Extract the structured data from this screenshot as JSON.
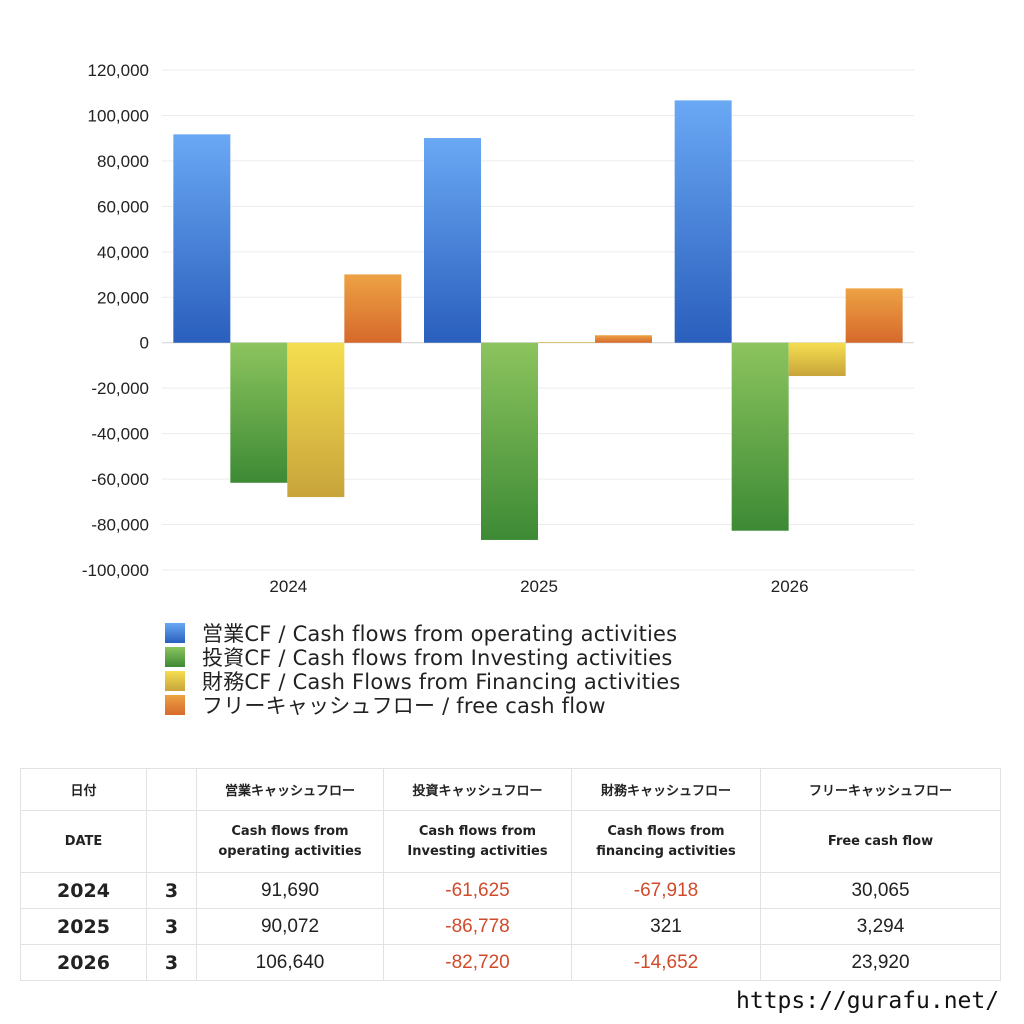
{
  "chart_data": {
    "type": "bar",
    "categories": [
      "2024",
      "2025",
      "2026"
    ],
    "series": [
      {
        "name": "営業CF / Cash flows from operating activities",
        "values": [
          91690,
          90072,
          106640
        ],
        "color": "#3b78d8"
      },
      {
        "name": "投資CF / Cash flows from Investing activities",
        "values": [
          -61625,
          -86778,
          -82720
        ],
        "color": "#5aa845"
      },
      {
        "name": "財務CF / Cash Flows from Financing activities",
        "values": [
          -67918,
          321,
          -14652
        ],
        "color": "#e9c640"
      },
      {
        "name": "フリーキャッシュフロー / free cash flow",
        "values": [
          30065,
          3294,
          23920
        ],
        "color": "#e5832f"
      }
    ],
    "yticks": [
      120000,
      100000,
      80000,
      60000,
      40000,
      20000,
      0,
      -20000,
      -40000,
      -60000,
      -80000,
      -100000
    ],
    "ytick_labels": [
      "120,000",
      "100,000",
      "80,000",
      "60,000",
      "40,000",
      "20,000",
      "0",
      "-20,000",
      "-40,000",
      "-60,000",
      "-80,000",
      "-100,000"
    ],
    "ylim": [
      -100000,
      120000
    ],
    "grid": true,
    "legend_position": "bottom"
  },
  "table": {
    "headers_ja": [
      "日付",
      "",
      "営業キャッシュフロー",
      "投資キャッシュフロー",
      "財務キャッシュフロー",
      "フリーキャッシュフロー"
    ],
    "headers_en": [
      "DATE",
      "",
      "Cash flows from\noperating activities",
      "Cash flows from\nInvesting activities",
      "Cash flows from\nfinancing activities",
      "Free cash flow"
    ],
    "rows": [
      {
        "year": "2024",
        "month": "3",
        "operating": "91,690",
        "investing": "-61,625",
        "financing": "-67,918",
        "free": "30,065"
      },
      {
        "year": "2025",
        "month": "3",
        "operating": "90,072",
        "investing": "-86,778",
        "financing": "321",
        "free": "3,294"
      },
      {
        "year": "2026",
        "month": "3",
        "operating": "106,640",
        "investing": "-82,720",
        "financing": "-14,652",
        "free": "23,920"
      }
    ]
  },
  "site_url": "https://gurafu.net/"
}
